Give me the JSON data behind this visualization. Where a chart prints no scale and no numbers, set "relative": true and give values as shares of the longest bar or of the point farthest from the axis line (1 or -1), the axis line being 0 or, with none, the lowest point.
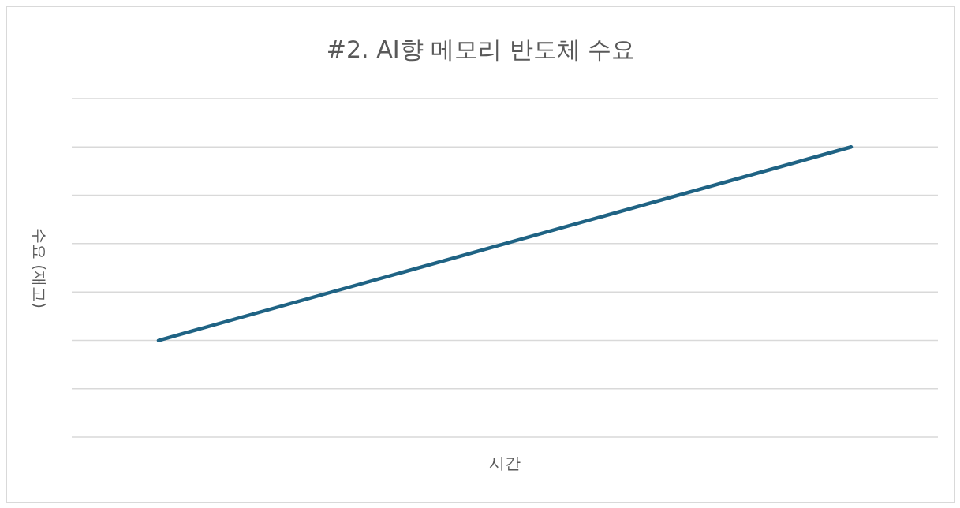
{
  "chart_data": {
    "type": "line",
    "title": "#2. AI향 메모리 반도체 수요",
    "xlabel": "시간",
    "ylabel": "수요 (재고)",
    "categories": [
      null,
      null
    ],
    "series": [
      {
        "color": "#1f6384",
        "values": [
          0.333,
          1
        ]
      }
    ],
    "relative": true,
    "grid": "y",
    "line_style": "solid"
  }
}
